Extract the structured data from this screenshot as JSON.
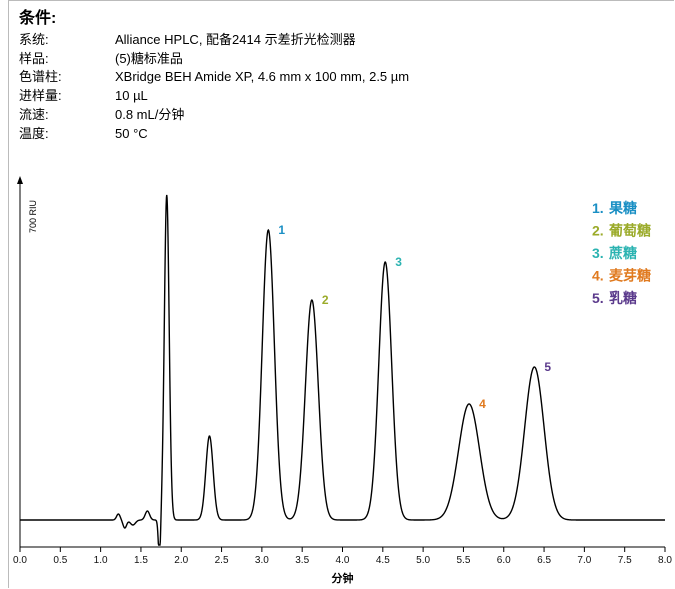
{
  "conditions": {
    "title": "条件:",
    "rows": [
      {
        "key": "系统:",
        "value": "Alliance HPLC, 配备2414 示差折光检测器"
      },
      {
        "key": "样品:",
        "value": "(5)糖标准品"
      },
      {
        "key": "色谱柱:",
        "value": "XBridge BEH Amide XP, 4.6 mm x 100 mm, 2.5 µm"
      },
      {
        "key": "进样量:",
        "value": "10 µL"
      },
      {
        "key": "流速:",
        "value": "0.8 mL/分钟"
      },
      {
        "key": "温度:",
        "value": "50 °C"
      }
    ]
  },
  "chart_data": {
    "type": "line",
    "xlabel": "分钟",
    "ylabel": "700 RIU",
    "xlim": [
      0.0,
      8.0
    ],
    "xticks": [
      "0.0",
      "0.5",
      "1.0",
      "1.5",
      "2.0",
      "2.5",
      "3.0",
      "3.5",
      "4.0",
      "4.5",
      "5.0",
      "5.5",
      "6.0",
      "6.5",
      "7.0",
      "7.5",
      "8.0"
    ],
    "baseline": 20,
    "peaks": [
      {
        "label": "1",
        "name": "果糖",
        "rt": 3.08,
        "height": 310,
        "color": "#1a8fc4"
      },
      {
        "label": "2",
        "name": "葡萄糖",
        "rt": 3.62,
        "height": 240,
        "color": "#9bab2a"
      },
      {
        "label": "3",
        "name": "蔗糖",
        "rt": 4.53,
        "height": 278,
        "color": "#2bb3b1"
      },
      {
        "label": "4",
        "name": "麦芽糖",
        "rt": 5.57,
        "height": 136,
        "color": "#e07a1f"
      },
      {
        "label": "5",
        "name": "乳糖",
        "rt": 6.38,
        "height": 173,
        "color": "#5b3a8c"
      }
    ],
    "unlabeled_peaks": [
      {
        "rt": 1.82,
        "height": 345
      },
      {
        "rt": 2.35,
        "height": 104
      }
    ],
    "legend": [
      {
        "label": "1.",
        "name": "果糖",
        "color": "#1a8fc4"
      },
      {
        "label": "2.",
        "name": "葡萄糖",
        "color": "#9bab2a"
      },
      {
        "label": "3.",
        "name": "蔗糖",
        "color": "#2bb3b1"
      },
      {
        "label": "4.",
        "name": "麦芽糖",
        "color": "#e07a1f"
      },
      {
        "label": "5.",
        "name": "乳糖",
        "color": "#5b3a8c"
      }
    ],
    "legend_position": "top-right"
  }
}
